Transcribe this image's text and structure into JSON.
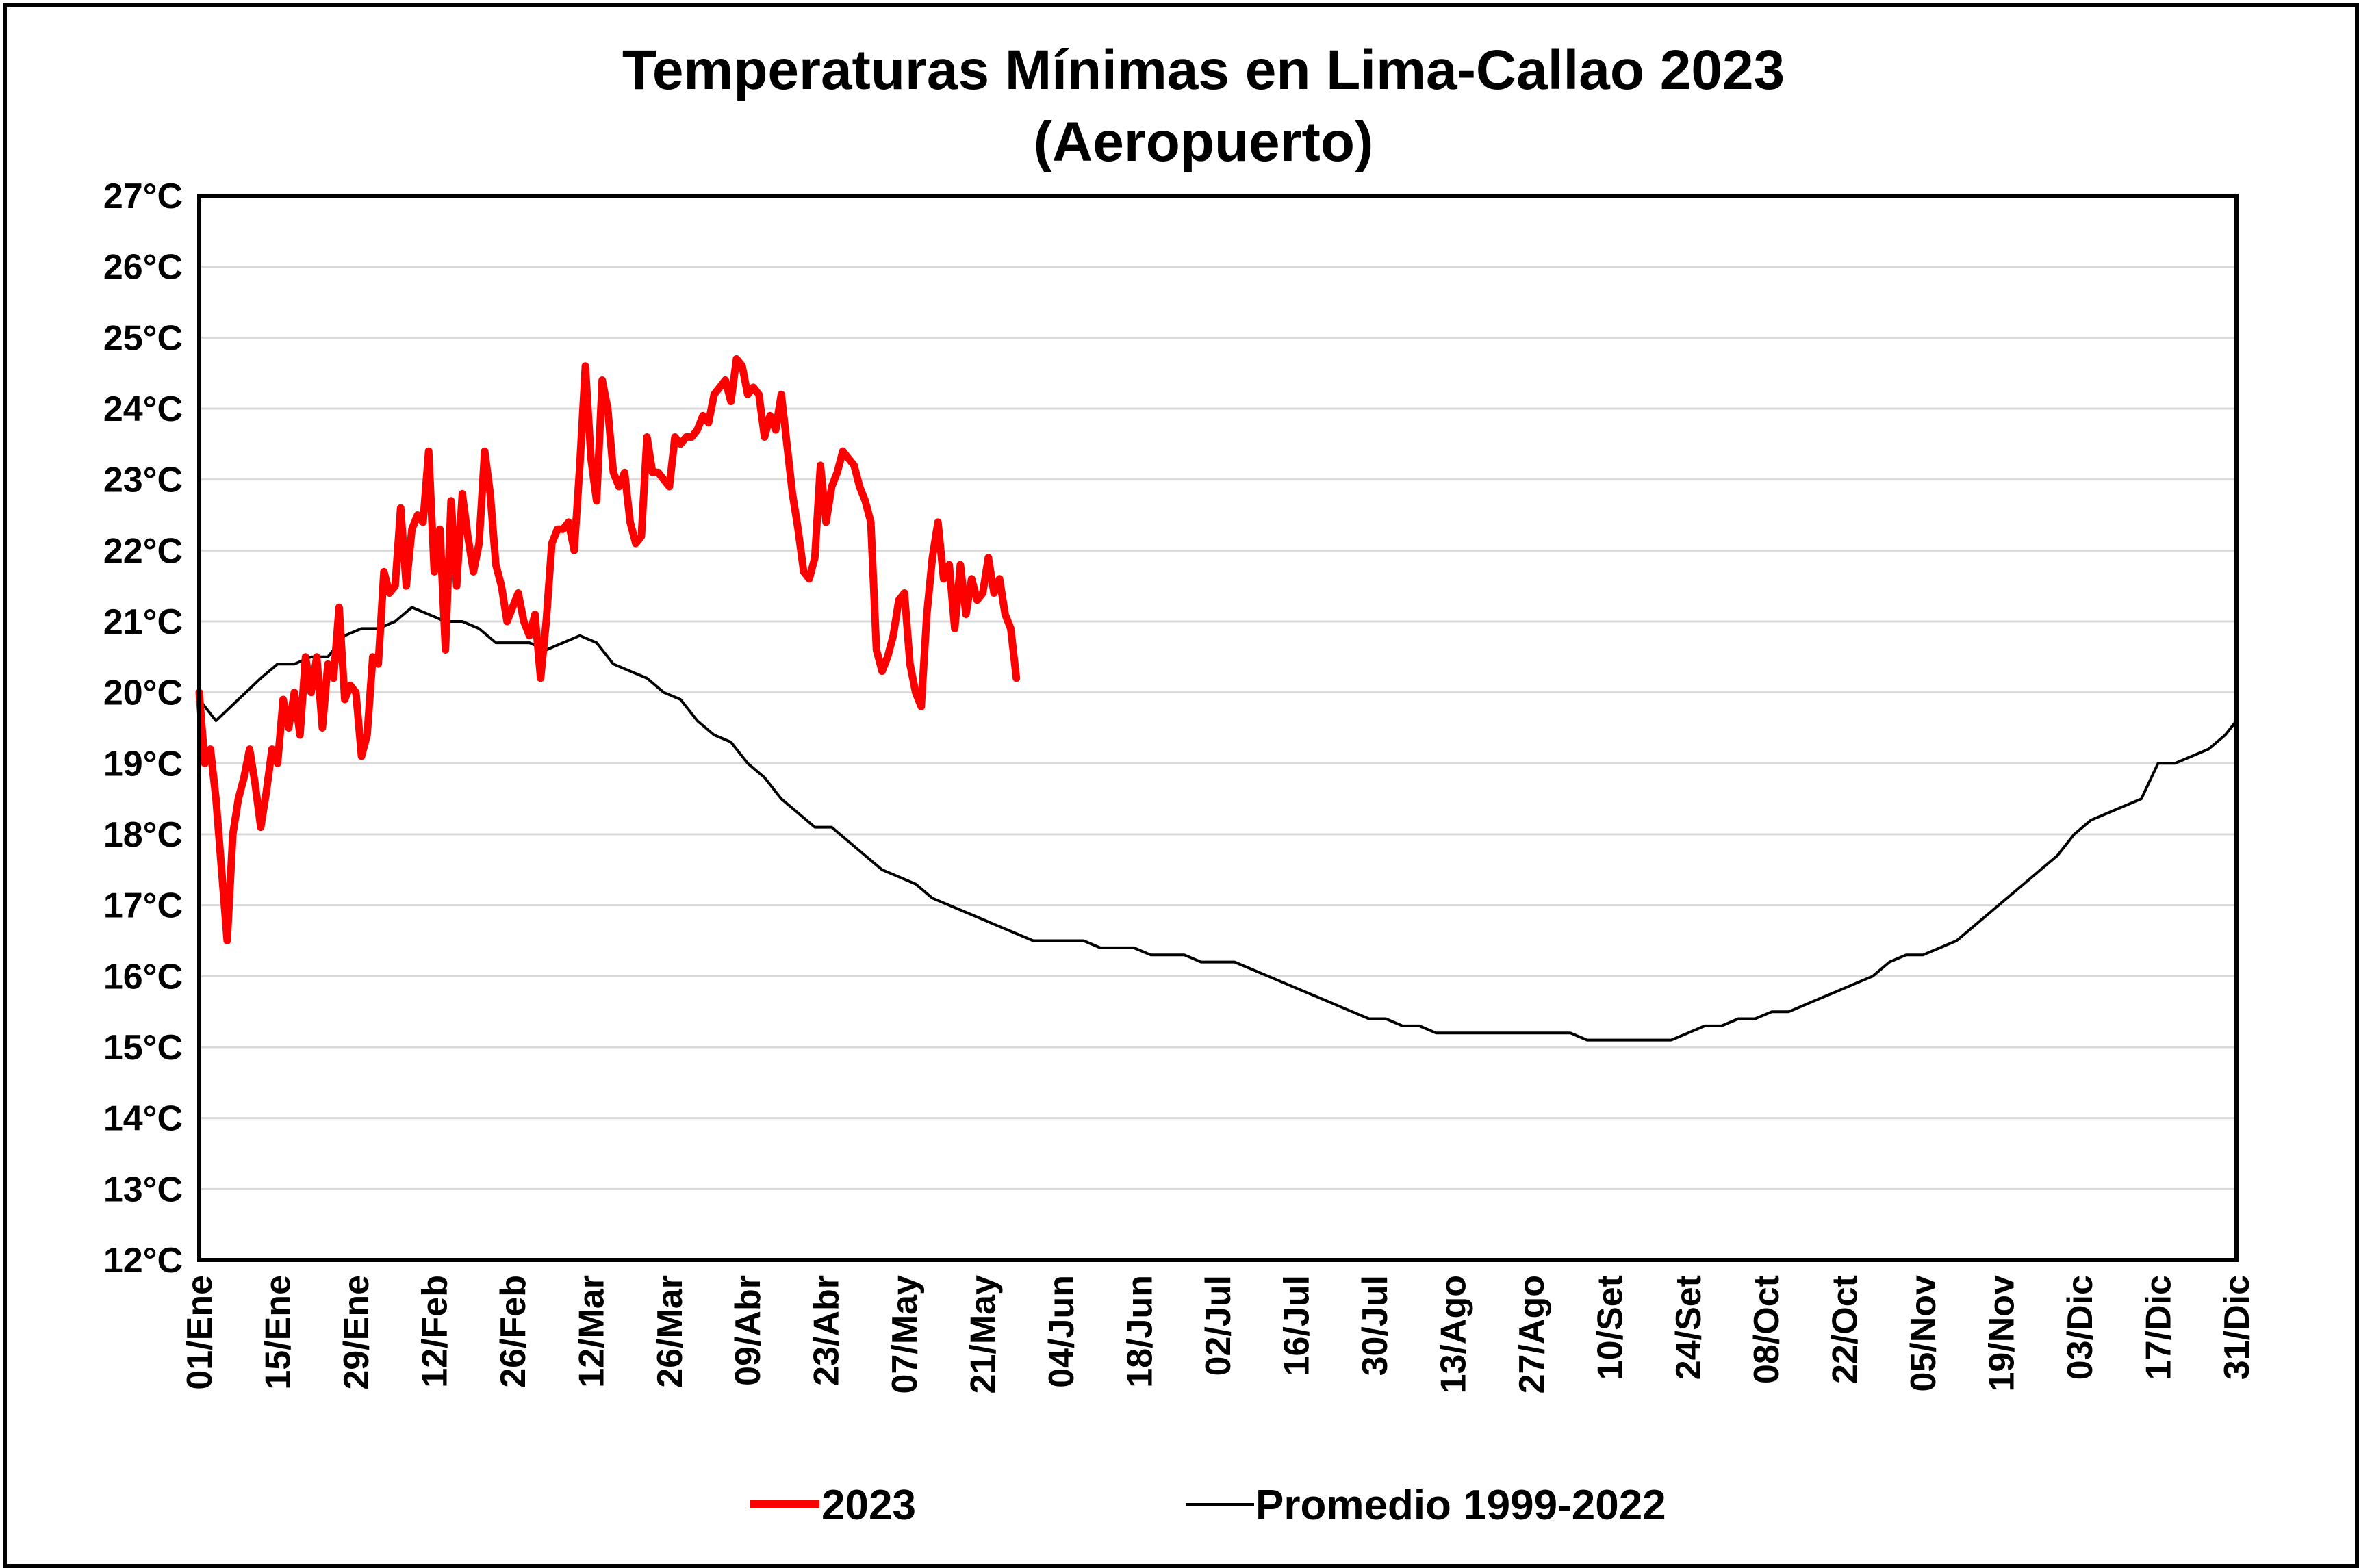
{
  "chart_data": {
    "type": "line",
    "title": "Temperaturas Mínimas en Lima-Callao 2023",
    "subtitle": "(Aeropuerto)",
    "xlabel": "",
    "ylabel": "",
    "ylim": [
      12,
      27
    ],
    "xlim": [
      1,
      365
    ],
    "grid": "horizontal",
    "legend_placement": "bottom",
    "y_ticks": [
      "12°C",
      "13°C",
      "14°C",
      "15°C",
      "16°C",
      "17°C",
      "18°C",
      "19°C",
      "20°C",
      "21°C",
      "22°C",
      "23°C",
      "24°C",
      "25°C",
      "26°C",
      "27°C"
    ],
    "x_ticks": [
      {
        "day": 1,
        "label": "01/Ene"
      },
      {
        "day": 15,
        "label": "15/Ene"
      },
      {
        "day": 29,
        "label": "29/Ene"
      },
      {
        "day": 43,
        "label": "12/Feb"
      },
      {
        "day": 57,
        "label": "26/Feb"
      },
      {
        "day": 71,
        "label": "12/Mar"
      },
      {
        "day": 85,
        "label": "26/Mar"
      },
      {
        "day": 99,
        "label": "09/Abr"
      },
      {
        "day": 113,
        "label": "23/Abr"
      },
      {
        "day": 127,
        "label": "07/May"
      },
      {
        "day": 141,
        "label": "21/May"
      },
      {
        "day": 155,
        "label": "04/Jun"
      },
      {
        "day": 169,
        "label": "18/Jun"
      },
      {
        "day": 183,
        "label": "02/Jul"
      },
      {
        "day": 197,
        "label": "16/Jul"
      },
      {
        "day": 211,
        "label": "30/Jul"
      },
      {
        "day": 225,
        "label": "13/Ago"
      },
      {
        "day": 239,
        "label": "27/Ago"
      },
      {
        "day": 253,
        "label": "10/Set"
      },
      {
        "day": 267,
        "label": "24/Set"
      },
      {
        "day": 281,
        "label": "08/Oct"
      },
      {
        "day": 295,
        "label": "22/Oct"
      },
      {
        "day": 309,
        "label": "05/Nov"
      },
      {
        "day": 323,
        "label": "19/Nov"
      },
      {
        "day": 337,
        "label": "03/Dic"
      },
      {
        "day": 351,
        "label": "17/Dic"
      },
      {
        "day": 365,
        "label": "31/Dic"
      }
    ],
    "series": [
      {
        "name": "2023",
        "color": "#ff0000",
        "points": [
          [
            1,
            20.0
          ],
          [
            2,
            19.0
          ],
          [
            3,
            19.2
          ],
          [
            4,
            18.5
          ],
          [
            5,
            17.5
          ],
          [
            6,
            16.5
          ],
          [
            7,
            18.0
          ],
          [
            8,
            18.5
          ],
          [
            9,
            18.8
          ],
          [
            10,
            19.2
          ],
          [
            11,
            18.7
          ],
          [
            12,
            18.1
          ],
          [
            13,
            18.6
          ],
          [
            14,
            19.2
          ],
          [
            15,
            19.0
          ],
          [
            16,
            19.9
          ],
          [
            17,
            19.5
          ],
          [
            18,
            20.0
          ],
          [
            19,
            19.4
          ],
          [
            20,
            20.5
          ],
          [
            21,
            20.0
          ],
          [
            22,
            20.5
          ],
          [
            23,
            19.5
          ],
          [
            24,
            20.4
          ],
          [
            25,
            20.2
          ],
          [
            26,
            21.2
          ],
          [
            27,
            19.9
          ],
          [
            28,
            20.1
          ],
          [
            29,
            20.0
          ],
          [
            30,
            19.1
          ],
          [
            31,
            19.4
          ],
          [
            32,
            20.5
          ],
          [
            33,
            20.4
          ],
          [
            34,
            21.7
          ],
          [
            35,
            21.4
          ],
          [
            36,
            21.5
          ],
          [
            37,
            22.6
          ],
          [
            38,
            21.5
          ],
          [
            39,
            22.3
          ],
          [
            40,
            22.5
          ],
          [
            41,
            22.4
          ],
          [
            42,
            23.4
          ],
          [
            43,
            21.7
          ],
          [
            44,
            22.3
          ],
          [
            45,
            20.6
          ],
          [
            46,
            22.7
          ],
          [
            47,
            21.5
          ],
          [
            48,
            22.8
          ],
          [
            49,
            22.2
          ],
          [
            50,
            21.7
          ],
          [
            51,
            22.1
          ],
          [
            52,
            23.4
          ],
          [
            53,
            22.8
          ],
          [
            54,
            21.8
          ],
          [
            55,
            21.5
          ],
          [
            56,
            21.0
          ],
          [
            57,
            21.2
          ],
          [
            58,
            21.4
          ],
          [
            59,
            21.0
          ],
          [
            60,
            20.8
          ],
          [
            61,
            21.1
          ],
          [
            62,
            20.2
          ],
          [
            63,
            21.0
          ],
          [
            64,
            22.1
          ],
          [
            65,
            22.3
          ],
          [
            66,
            22.3
          ],
          [
            67,
            22.4
          ],
          [
            68,
            22.0
          ],
          [
            69,
            23.2
          ],
          [
            70,
            24.6
          ],
          [
            71,
            23.3
          ],
          [
            72,
            22.7
          ],
          [
            73,
            24.4
          ],
          [
            74,
            24.0
          ],
          [
            75,
            23.1
          ],
          [
            76,
            22.9
          ],
          [
            77,
            23.1
          ],
          [
            78,
            22.4
          ],
          [
            79,
            22.1
          ],
          [
            80,
            22.2
          ],
          [
            81,
            23.6
          ],
          [
            82,
            23.1
          ],
          [
            83,
            23.1
          ],
          [
            84,
            23.0
          ],
          [
            85,
            22.9
          ],
          [
            86,
            23.6
          ],
          [
            87,
            23.5
          ],
          [
            88,
            23.6
          ],
          [
            89,
            23.6
          ],
          [
            90,
            23.7
          ],
          [
            91,
            23.9
          ],
          [
            92,
            23.8
          ],
          [
            93,
            24.2
          ],
          [
            94,
            24.3
          ],
          [
            95,
            24.4
          ],
          [
            96,
            24.1
          ],
          [
            97,
            24.7
          ],
          [
            98,
            24.6
          ],
          [
            99,
            24.2
          ],
          [
            100,
            24.3
          ],
          [
            101,
            24.2
          ],
          [
            102,
            23.6
          ],
          [
            103,
            23.9
          ],
          [
            104,
            23.7
          ],
          [
            105,
            24.2
          ],
          [
            106,
            23.5
          ],
          [
            107,
            22.8
          ],
          [
            108,
            22.3
          ],
          [
            109,
            21.7
          ],
          [
            110,
            21.6
          ],
          [
            111,
            21.9
          ],
          [
            112,
            23.2
          ],
          [
            113,
            22.4
          ],
          [
            114,
            22.9
          ],
          [
            115,
            23.1
          ],
          [
            116,
            23.4
          ],
          [
            117,
            23.3
          ],
          [
            118,
            23.2
          ],
          [
            119,
            22.9
          ],
          [
            120,
            22.7
          ],
          [
            121,
            22.4
          ],
          [
            122,
            20.6
          ],
          [
            123,
            20.3
          ],
          [
            124,
            20.5
          ],
          [
            125,
            20.8
          ],
          [
            126,
            21.3
          ],
          [
            127,
            21.4
          ],
          [
            128,
            20.4
          ],
          [
            129,
            20.0
          ],
          [
            130,
            19.8
          ],
          [
            131,
            21.1
          ],
          [
            132,
            21.9
          ],
          [
            133,
            22.4
          ],
          [
            134,
            21.6
          ],
          [
            135,
            21.8
          ],
          [
            136,
            20.9
          ],
          [
            137,
            21.8
          ],
          [
            138,
            21.1
          ],
          [
            139,
            21.6
          ],
          [
            140,
            21.3
          ],
          [
            141,
            21.4
          ],
          [
            142,
            21.9
          ],
          [
            143,
            21.4
          ],
          [
            144,
            21.6
          ],
          [
            145,
            21.1
          ],
          [
            146,
            20.9
          ],
          [
            147,
            20.2
          ]
        ]
      },
      {
        "name": "Promedio 1999-2022",
        "color": "#000000",
        "points": [
          [
            1,
            19.9
          ],
          [
            4,
            19.6
          ],
          [
            8,
            19.9
          ],
          [
            12,
            20.2
          ],
          [
            15,
            20.4
          ],
          [
            18,
            20.4
          ],
          [
            21,
            20.5
          ],
          [
            24,
            20.5
          ],
          [
            27,
            20.8
          ],
          [
            30,
            20.9
          ],
          [
            33,
            20.9
          ],
          [
            36,
            21.0
          ],
          [
            39,
            21.2
          ],
          [
            42,
            21.1
          ],
          [
            45,
            21.0
          ],
          [
            48,
            21.0
          ],
          [
            51,
            20.9
          ],
          [
            54,
            20.7
          ],
          [
            57,
            20.7
          ],
          [
            60,
            20.7
          ],
          [
            63,
            20.6
          ],
          [
            66,
            20.7
          ],
          [
            69,
            20.8
          ],
          [
            72,
            20.7
          ],
          [
            75,
            20.4
          ],
          [
            78,
            20.3
          ],
          [
            81,
            20.2
          ],
          [
            84,
            20.0
          ],
          [
            87,
            19.9
          ],
          [
            90,
            19.6
          ],
          [
            93,
            19.4
          ],
          [
            96,
            19.3
          ],
          [
            99,
            19.0
          ],
          [
            102,
            18.8
          ],
          [
            105,
            18.5
          ],
          [
            108,
            18.3
          ],
          [
            111,
            18.1
          ],
          [
            114,
            18.1
          ],
          [
            117,
            17.9
          ],
          [
            120,
            17.7
          ],
          [
            123,
            17.5
          ],
          [
            126,
            17.4
          ],
          [
            129,
            17.3
          ],
          [
            132,
            17.1
          ],
          [
            135,
            17.0
          ],
          [
            138,
            16.9
          ],
          [
            141,
            16.8
          ],
          [
            144,
            16.7
          ],
          [
            147,
            16.6
          ],
          [
            150,
            16.5
          ],
          [
            153,
            16.5
          ],
          [
            156,
            16.5
          ],
          [
            159,
            16.5
          ],
          [
            162,
            16.4
          ],
          [
            165,
            16.4
          ],
          [
            168,
            16.4
          ],
          [
            171,
            16.3
          ],
          [
            174,
            16.3
          ],
          [
            177,
            16.3
          ],
          [
            180,
            16.2
          ],
          [
            183,
            16.2
          ],
          [
            186,
            16.2
          ],
          [
            189,
            16.1
          ],
          [
            192,
            16.0
          ],
          [
            195,
            15.9
          ],
          [
            198,
            15.8
          ],
          [
            201,
            15.7
          ],
          [
            204,
            15.6
          ],
          [
            207,
            15.5
          ],
          [
            210,
            15.4
          ],
          [
            213,
            15.4
          ],
          [
            216,
            15.3
          ],
          [
            219,
            15.3
          ],
          [
            222,
            15.2
          ],
          [
            225,
            15.2
          ],
          [
            228,
            15.2
          ],
          [
            231,
            15.2
          ],
          [
            234,
            15.2
          ],
          [
            237,
            15.2
          ],
          [
            240,
            15.2
          ],
          [
            243,
            15.2
          ],
          [
            246,
            15.2
          ],
          [
            249,
            15.1
          ],
          [
            252,
            15.1
          ],
          [
            255,
            15.1
          ],
          [
            258,
            15.1
          ],
          [
            261,
            15.1
          ],
          [
            264,
            15.1
          ],
          [
            267,
            15.2
          ],
          [
            270,
            15.3
          ],
          [
            273,
            15.3
          ],
          [
            276,
            15.4
          ],
          [
            279,
            15.4
          ],
          [
            282,
            15.5
          ],
          [
            285,
            15.5
          ],
          [
            288,
            15.6
          ],
          [
            291,
            15.7
          ],
          [
            294,
            15.8
          ],
          [
            297,
            15.9
          ],
          [
            300,
            16.0
          ],
          [
            303,
            16.2
          ],
          [
            306,
            16.3
          ],
          [
            309,
            16.3
          ],
          [
            312,
            16.4
          ],
          [
            315,
            16.5
          ],
          [
            318,
            16.7
          ],
          [
            321,
            16.9
          ],
          [
            324,
            17.1
          ],
          [
            327,
            17.3
          ],
          [
            330,
            17.5
          ],
          [
            333,
            17.7
          ],
          [
            336,
            18.0
          ],
          [
            339,
            18.2
          ],
          [
            342,
            18.3
          ],
          [
            345,
            18.4
          ],
          [
            348,
            18.5
          ],
          [
            351,
            19.0
          ],
          [
            354,
            19.0
          ],
          [
            357,
            19.1
          ],
          [
            360,
            19.2
          ],
          [
            363,
            19.4
          ],
          [
            365,
            19.6
          ]
        ]
      }
    ]
  }
}
